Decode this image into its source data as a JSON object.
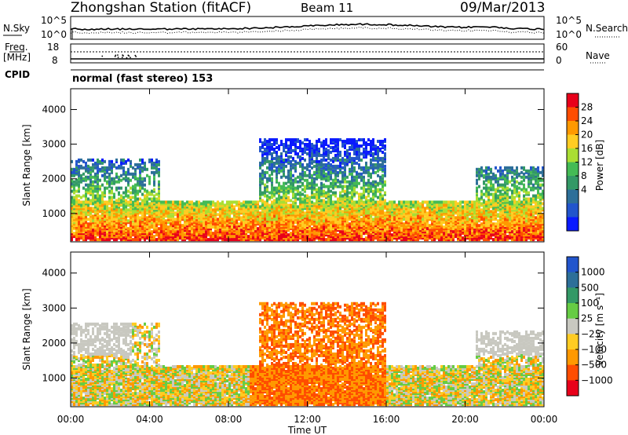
{
  "header": {
    "station": "Zhongshan Station (fitACF)",
    "beam": "Beam 11",
    "date": "09/Mar/2013"
  },
  "top_panels": {
    "nsky_label": "N.Sky",
    "nsky_hi": "10^5",
    "nsky_lo": "10^0",
    "nsearch_label": "N.Search",
    "nsearch_hi": "10^5",
    "nsearch_lo": "10^0",
    "freq_label": "Freq.",
    "freq_unit": "[MHz]",
    "freq_hi": "18",
    "freq_lo": "8",
    "nave_label": "Nave",
    "nave_hi": "60",
    "nave_lo": "0",
    "cpid_label": "CPID",
    "cpid_text": "normal (fast stereo) 153"
  },
  "chart_data": [
    {
      "type": "heatmap",
      "panel": "power",
      "xlabel": "Time UT",
      "ylabel": "Slant Range [km]",
      "x_ticks": [
        "00:00",
        "04:00",
        "08:00",
        "12:00",
        "16:00",
        "20:00",
        "00:00"
      ],
      "y_ticks": [
        1000,
        2000,
        3000,
        4000
      ],
      "ylim": [
        180,
        4600
      ],
      "colorbar_label": "Power [dB]",
      "colorbar_ticks": [
        "28",
        "24",
        "20",
        "16",
        "12",
        "8",
        "4"
      ],
      "colorbar_colors": [
        "#e8001a",
        "#ff4d00",
        "#ff9900",
        "#ffcc22",
        "#aade33",
        "#44bb55",
        "#339966",
        "#2d6f99",
        "#2255cc",
        "#0a1aff"
      ]
    },
    {
      "type": "heatmap",
      "panel": "velocity",
      "xlabel": "Time UT",
      "ylabel": "Slant Range [km]",
      "x_ticks": [
        "00:00",
        "04:00",
        "08:00",
        "12:00",
        "16:00",
        "20:00",
        "00:00"
      ],
      "y_ticks": [
        1000,
        2000,
        3000,
        4000
      ],
      "ylim": [
        180,
        4600
      ],
      "colorbar_label": "Velocity [m s⁻¹]",
      "colorbar_ticks": [
        "1000",
        "500",
        "100",
        "25",
        "−25",
        "−100",
        "−500",
        "−1000"
      ],
      "colorbar_colors": [
        "#2255cc",
        "#2d6f99",
        "#339966",
        "#66cc44",
        "#c8c8c0",
        "#ffcc22",
        "#ff9900",
        "#ff4d00",
        "#e8001a"
      ]
    }
  ]
}
